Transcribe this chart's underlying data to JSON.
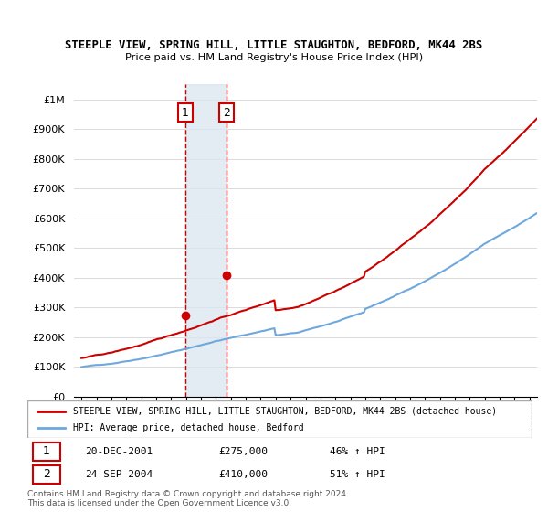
{
  "title": "STEEPLE VIEW, SPRING HILL, LITTLE STAUGHTON, BEDFORD, MK44 2BS",
  "subtitle": "Price paid vs. HM Land Registry's House Price Index (HPI)",
  "hpi_label": "HPI: Average price, detached house, Bedford",
  "property_label": "STEEPLE VIEW, SPRING HILL, LITTLE STAUGHTON, BEDFORD, MK44 2BS (detached house)",
  "sale1_date": "20-DEC-2001",
  "sale1_price": 275000,
  "sale1_hpi": "46% ↑ HPI",
  "sale2_date": "24-SEP-2004",
  "sale2_price": 410000,
  "sale2_hpi": "51% ↑ HPI",
  "footer1": "Contains HM Land Registry data © Crown copyright and database right 2024.",
  "footer2": "This data is licensed under the Open Government Licence v3.0.",
  "hpi_color": "#6fa8dc",
  "property_color": "#cc0000",
  "sale_color": "#cc0000",
  "highlight_fill": "#dce6f1",
  "highlight_edge": "#cc0000",
  "ylim": [
    0,
    1050000
  ],
  "yticks": [
    0,
    100000,
    200000,
    300000,
    400000,
    500000,
    600000,
    700000,
    800000,
    900000,
    1000000
  ],
  "ytick_labels": [
    "£0",
    "£100K",
    "£200K",
    "£300K",
    "£400K",
    "£500K",
    "£600K",
    "£700K",
    "£800K",
    "£900K",
    "£1M"
  ],
  "x_start_year": 1995,
  "x_end_year": 2025
}
